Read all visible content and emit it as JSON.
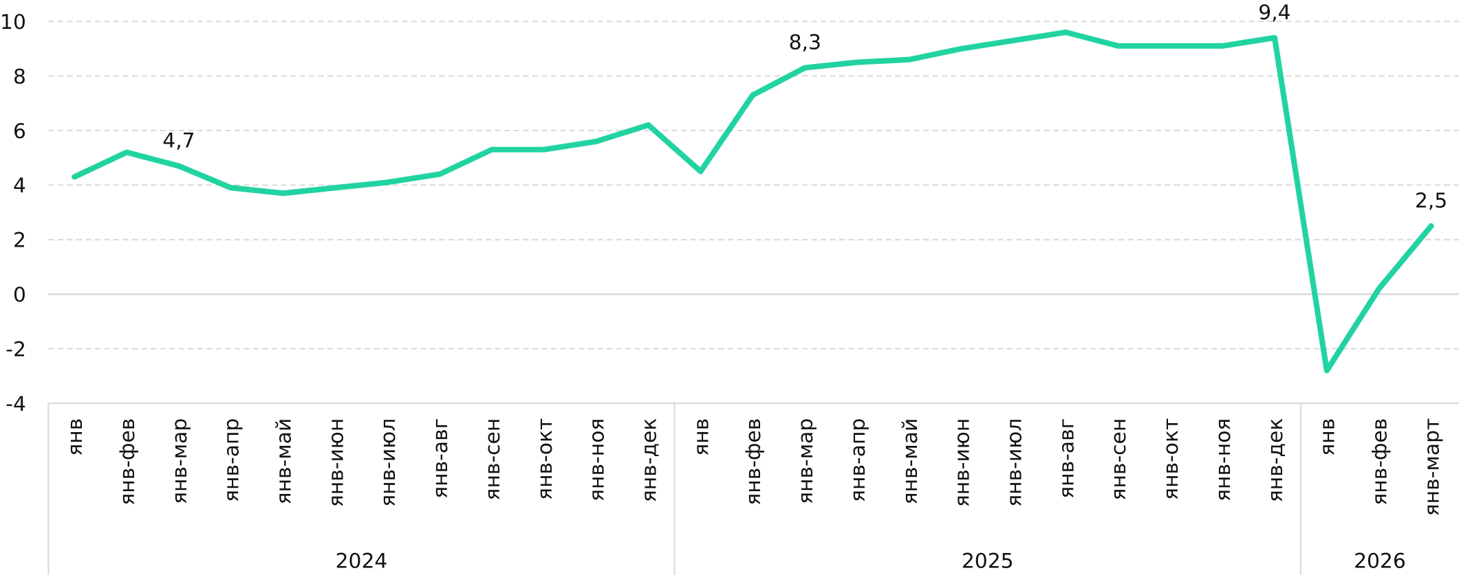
{
  "chart_data": {
    "type": "line",
    "categories": [
      "янв",
      "янв-фев",
      "янв-мар",
      "янв-апр",
      "янв-май",
      "янв-июн",
      "янв-июл",
      "янв-авг",
      "янв-сен",
      "янв-окт",
      "янв-ноя",
      "янв-дек",
      "янв",
      "янв-фев",
      "янв-мар",
      "янв-апр",
      "янв-май",
      "янв-июн",
      "янв-июл",
      "янв-авг",
      "янв-сен",
      "янв-окт",
      "янв-ноя",
      "янв-дек",
      "янв",
      "янв-фев",
      "янв-март"
    ],
    "category_groups": [
      {
        "label": "2024",
        "size": 12
      },
      {
        "label": "2025",
        "size": 12
      },
      {
        "label": "2026",
        "size": 3
      }
    ],
    "values": [
      4.3,
      5.2,
      4.7,
      3.9,
      3.7,
      3.9,
      4.1,
      4.4,
      5.3,
      5.3,
      5.6,
      6.2,
      4.5,
      7.3,
      8.3,
      8.5,
      8.6,
      9.0,
      9.3,
      9.6,
      9.1,
      9.1,
      9.1,
      9.4,
      -2.8,
      0.2,
      2.5
    ],
    "value_labels": [
      null,
      null,
      "4,7",
      null,
      null,
      null,
      null,
      null,
      null,
      null,
      null,
      null,
      null,
      null,
      "8,3",
      null,
      null,
      null,
      null,
      null,
      null,
      null,
      null,
      "9,4",
      null,
      null,
      "2,5"
    ],
    "color": "#22d3a2",
    "ylim": [
      -4,
      10
    ],
    "yticks": [
      -4,
      -2,
      0,
      2,
      4,
      6,
      8,
      10
    ],
    "grid": true
  }
}
